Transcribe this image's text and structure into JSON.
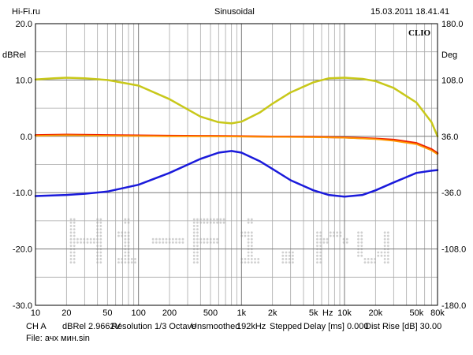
{
  "header": {
    "site": "Hi-Fi.ru",
    "mode": "Sinusoidal",
    "timestamp": "15.03.2011 18.41.41"
  },
  "brand": "CLIO",
  "watermark": "Hi-Fi.ru",
  "footer": {
    "line1": {
      "channel": "CH A",
      "level": "dBRel 2.9662V",
      "resolution": "Resolution 1/3 Octave",
      "smoothing": "Unsmoothed",
      "rate": "192kHz",
      "stepped": "Stepped",
      "delay": "Delay [ms] 0.000",
      "dist": "Dist Rise [dB] 30.00"
    },
    "line2": "File: ачх мин.sin"
  },
  "chart_data": {
    "type": "line",
    "x_scale": "log",
    "xlim": [
      10,
      80000
    ],
    "ylim": [
      -30,
      20
    ],
    "y2lim": [
      -180,
      180
    ],
    "ylabel": "dBRel",
    "y2label": "Deg",
    "xunit": "Hz",
    "grid": true,
    "x_ticks": [
      {
        "v": 10,
        "label": "10"
      },
      {
        "v": 20,
        "label": "20"
      },
      {
        "v": 50,
        "label": "50"
      },
      {
        "v": 100,
        "label": "100"
      },
      {
        "v": 200,
        "label": "200"
      },
      {
        "v": 500,
        "label": "500"
      },
      {
        "v": 1000,
        "label": "1k"
      },
      {
        "v": 2000,
        "label": "2k"
      },
      {
        "v": 5000,
        "label": "5k"
      },
      {
        "v": 10000,
        "label": "10k"
      },
      {
        "v": 20000,
        "label": "20k"
      },
      {
        "v": 50000,
        "label": "50k"
      },
      {
        "v": 80000,
        "label": "80k"
      }
    ],
    "y_ticks": [
      {
        "v": 20,
        "label": "20.0"
      },
      {
        "v": 10,
        "label": "10.0"
      },
      {
        "v": 0,
        "label": "0.0"
      },
      {
        "v": -10,
        "label": "-10.0"
      },
      {
        "v": -20,
        "label": "-20.0"
      },
      {
        "v": -30,
        "label": "-30.0"
      }
    ],
    "y2_ticks": [
      {
        "v": 180,
        "label": "180.0"
      },
      {
        "v": 108,
        "label": "108.0"
      },
      {
        "v": 36,
        "label": "36.0"
      },
      {
        "v": -36,
        "label": "-36.0"
      },
      {
        "v": -108,
        "label": "-108.0"
      },
      {
        "v": -180,
        "label": "-180.0"
      }
    ],
    "series": [
      {
        "color": "#c8c81a",
        "width": 2.5,
        "x": [
          10,
          15,
          20,
          30,
          50,
          100,
          200,
          400,
          600,
          800,
          1000,
          1500,
          2000,
          3000,
          5000,
          7000,
          10000,
          15000,
          20000,
          30000,
          50000,
          70000,
          80000
        ],
        "y": [
          10.1,
          10.3,
          10.4,
          10.3,
          10.0,
          9.0,
          6.6,
          3.5,
          2.5,
          2.3,
          2.6,
          4.2,
          5.8,
          7.8,
          9.6,
          10.3,
          10.4,
          10.2,
          9.8,
          8.6,
          6.0,
          2.5,
          0.0
        ]
      },
      {
        "color": "#ee2200",
        "width": 2.5,
        "x": [
          10,
          20,
          50,
          100,
          200,
          500,
          1000,
          2000,
          5000,
          10000,
          20000,
          30000,
          50000,
          70000,
          80000
        ],
        "y": [
          0.2,
          0.3,
          0.2,
          0.15,
          0.1,
          0.05,
          0.0,
          -0.05,
          -0.1,
          -0.2,
          -0.4,
          -0.6,
          -1.2,
          -2.3,
          -3.0
        ]
      },
      {
        "color": "#ff9900",
        "width": 1.8,
        "x": [
          10,
          20,
          50,
          100,
          200,
          500,
          1000,
          2000,
          5000,
          10000,
          20000,
          30000,
          50000,
          70000,
          80000
        ],
        "y": [
          0.1,
          0.2,
          0.1,
          0.05,
          0.0,
          0.0,
          -0.05,
          -0.1,
          -0.15,
          -0.25,
          -0.5,
          -0.8,
          -1.4,
          -2.5,
          -3.2
        ]
      },
      {
        "color": "#1a1adb",
        "width": 2.5,
        "x": [
          10,
          20,
          30,
          50,
          100,
          200,
          400,
          600,
          800,
          1000,
          1500,
          2000,
          3000,
          5000,
          7000,
          10000,
          15000,
          20000,
          30000,
          50000,
          70000,
          80000
        ],
        "y": [
          -10.6,
          -10.4,
          -10.2,
          -9.8,
          -8.6,
          -6.5,
          -4.0,
          -2.9,
          -2.6,
          -2.9,
          -4.4,
          -5.8,
          -7.8,
          -9.6,
          -10.4,
          -10.7,
          -10.4,
          -9.6,
          -8.2,
          -6.5,
          -6.1,
          -6.0
        ]
      }
    ]
  }
}
